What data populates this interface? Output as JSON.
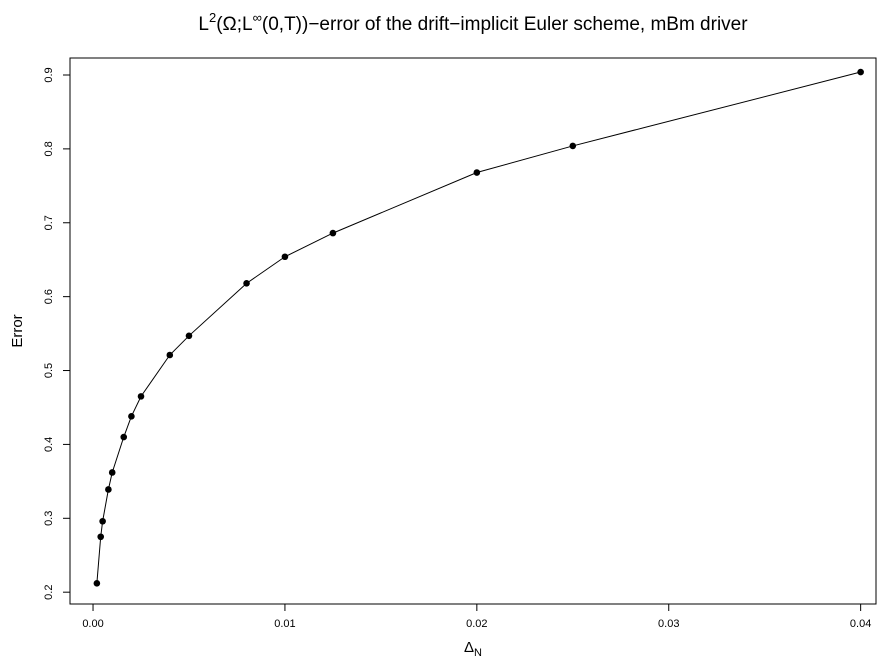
{
  "chart_data": {
    "type": "line",
    "title": [
      "L",
      "2",
      "(Ω;L",
      "∞",
      "(0,T))−error of the drift−implicit Euler scheme, mBm driver"
    ],
    "x_label": [
      "Δ",
      "N"
    ],
    "y_label": "Error",
    "x": [
      0.0002,
      0.0004,
      0.0005,
      0.0008,
      0.001,
      0.0016,
      0.002,
      0.0025,
      0.004,
      0.005,
      0.008,
      0.01,
      0.0125,
      0.02,
      0.025,
      0.04
    ],
    "series": [
      {
        "color": "#000000",
        "values": [
          0.212,
          0.275,
          0.296,
          0.339,
          0.362,
          0.41,
          0.438,
          0.465,
          0.521,
          0.547,
          0.618,
          0.654,
          0.686,
          0.768,
          0.804,
          0.904
        ]
      }
    ],
    "xlim": [
      -0.0012,
      0.0408
    ],
    "ylim": [
      0.184,
      0.923
    ],
    "xticks": [
      {
        "value": 0,
        "label": "0.00"
      },
      0.01,
      0.02,
      0.03,
      0.04
    ],
    "yticks": [
      0.2,
      0.3,
      0.4,
      0.5,
      0.6,
      0.7,
      0.8,
      0.9
    ]
  }
}
